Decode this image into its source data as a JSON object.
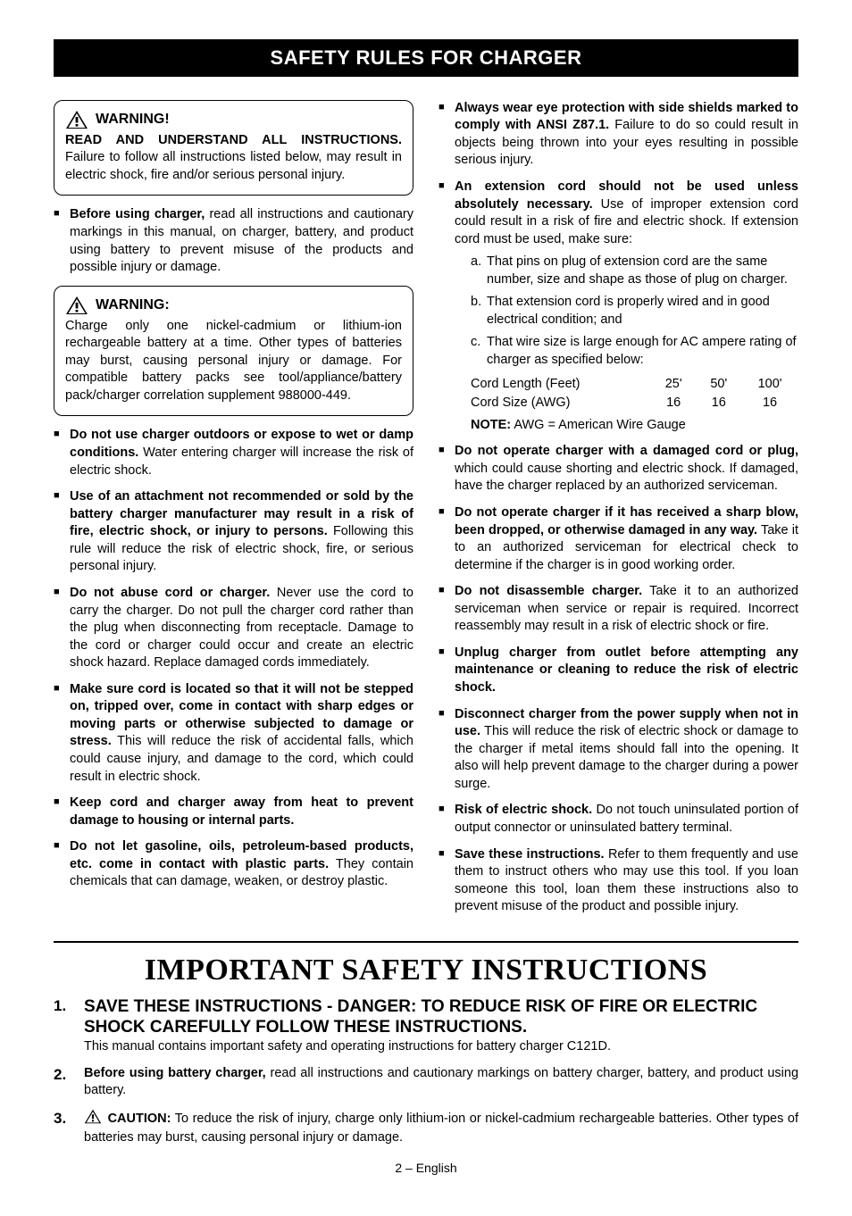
{
  "banner": "SAFETY RULES FOR CHARGER",
  "warn1": {
    "label": "WARNING!",
    "lead_bold": "READ AND UNDERSTAND ALL INSTRUCTIONS.",
    "lead_rest": " Failure to follow all instructions listed below, may result in electric shock, fire and/or serious personal injury."
  },
  "left_first_bullet": {
    "bold": "Before using charger,",
    "rest": " read all instructions and cautionary markings in this manual, on charger, battery, and product using battery to prevent misuse of the products and possible injury or damage."
  },
  "warn2": {
    "label": "WARNING:",
    "body": "Charge only one nickel-cadmium or lithium-ion rechargeable battery at a time. Other types of batteries may burst, causing personal injury or damage. For compatible battery packs see tool/appliance/battery pack/charger correlation supplement 988000-449."
  },
  "left_bullets": [
    {
      "bold": "Do not use charger outdoors or expose to wet or damp conditions.",
      "rest": " Water entering charger will increase the risk of electric shock."
    },
    {
      "bold": "Use of an attachment not recommended or sold by the battery charger manufacturer may result in a risk of fire, electric shock, or injury to persons.",
      "rest": " Following this rule will reduce the risk of electric shock, fire, or serious personal injury."
    },
    {
      "bold": "Do not abuse cord or charger.",
      "rest": " Never use the cord to carry the charger. Do not pull the charger cord rather than the plug when disconnecting from receptacle. Damage to the cord or charger could occur and create an electric shock hazard. Replace damaged cords immediately."
    },
    {
      "bold": "Make sure cord is located so that it will not be stepped on, tripped over, come in contact with sharp edges or moving parts or otherwise subjected to damage or stress.",
      "rest": " This will reduce the risk of accidental falls, which could cause injury, and damage to the cord, which could result in electric shock."
    },
    {
      "bold": "Keep cord and charger away from heat to prevent damage to housing or internal parts.",
      "rest": ""
    },
    {
      "bold": "Do not let gasoline, oils, petroleum-based products, etc. come in contact with plastic parts.",
      "rest": " They contain chemicals that can damage, weaken, or destroy plastic."
    }
  ],
  "right_bullets_top": [
    {
      "bold": "Always wear eye protection with side shields marked to comply with ANSI Z87.1.",
      "rest": " Failure to do so could result in objects being thrown into your eyes resulting in possible serious injury."
    }
  ],
  "ext_cord": {
    "bold": "An extension cord should not be used unless absolutely necessary.",
    "rest": " Use of improper extension cord could result in a risk of fire and electric shock. If extension cord must be used, make sure:",
    "sub": [
      {
        "lab": "a.",
        "text": "That pins on plug of extension cord are the same number, size and shape as those of plug on charger."
      },
      {
        "lab": "b.",
        "text": "That extension cord is properly wired and in good electrical condition; and"
      },
      {
        "lab": "c.",
        "text": "That wire size is large enough for AC ampere rating of charger as specified below:"
      }
    ],
    "table": {
      "rows": [
        [
          "Cord Length (Feet)",
          "25'",
          "50'",
          "100'"
        ],
        [
          "Cord Size (AWG)",
          "16",
          "16",
          "16"
        ]
      ]
    },
    "note_bold": "NOTE:",
    "note_rest": " AWG = American Wire Gauge"
  },
  "right_bullets_rest": [
    {
      "bold": "Do not operate charger with a damaged cord or plug,",
      "rest": " which could cause shorting and electric shock. If damaged, have the charger replaced by an authorized serviceman."
    },
    {
      "bold": "Do not operate charger if it has received a sharp blow, been dropped, or otherwise damaged in any way.",
      "rest": " Take it to an authorized serviceman for electrical check to determine if the charger is in good working order."
    },
    {
      "bold": "Do not disassemble charger.",
      "rest": " Take it to an authorized serviceman when service or repair is required. Incorrect reassembly may result in a risk of electric shock or fire."
    },
    {
      "bold": "Unplug charger from outlet before attempting any maintenance or cleaning to reduce the risk of electric shock.",
      "rest": ""
    },
    {
      "bold": "Disconnect charger from the power supply when not in use.",
      "rest": " This will reduce the risk of electric shock or damage to the charger if metal items should fall into the opening. It also will help prevent damage to the charger during a power surge."
    },
    {
      "bold": "Risk of electric shock.",
      "rest": " Do not touch uninsulated portion of output connector or uninsulated battery terminal."
    },
    {
      "bold": "Save these instructions.",
      "rest": " Refer to them frequently and use them to instruct others who may use this tool. If you loan someone this tool, loan them these instructions also to prevent misuse of the product and possible injury."
    }
  ],
  "important_title": "IMPORTANT SAFETY INSTRUCTIONS",
  "num_items": [
    {
      "num": "1.",
      "head": "SAVE THESE INSTRUCTIONS - DANGER: TO REDUCE RISK OF FIRE OR ELECTRIC SHOCK CAREFULLY FOLLOW THESE INSTRUCTIONS.",
      "body": "This manual contains important safety and operating instructions for battery charger C121D."
    },
    {
      "num": "2.",
      "bold": "Before using battery charger,",
      "rest": " read all instructions and cautionary markings on battery charger, battery, and product using battery."
    },
    {
      "num": "3.",
      "caution_label": "CAUTION:",
      "rest": " To reduce the risk of injury, charge only lithium-ion or nickel-cadmium rechargeable batteries. Other types of batteries may burst, causing personal injury or damage."
    }
  ],
  "footer": "2 – English",
  "colors": {
    "black": "#000000",
    "white": "#ffffff"
  }
}
